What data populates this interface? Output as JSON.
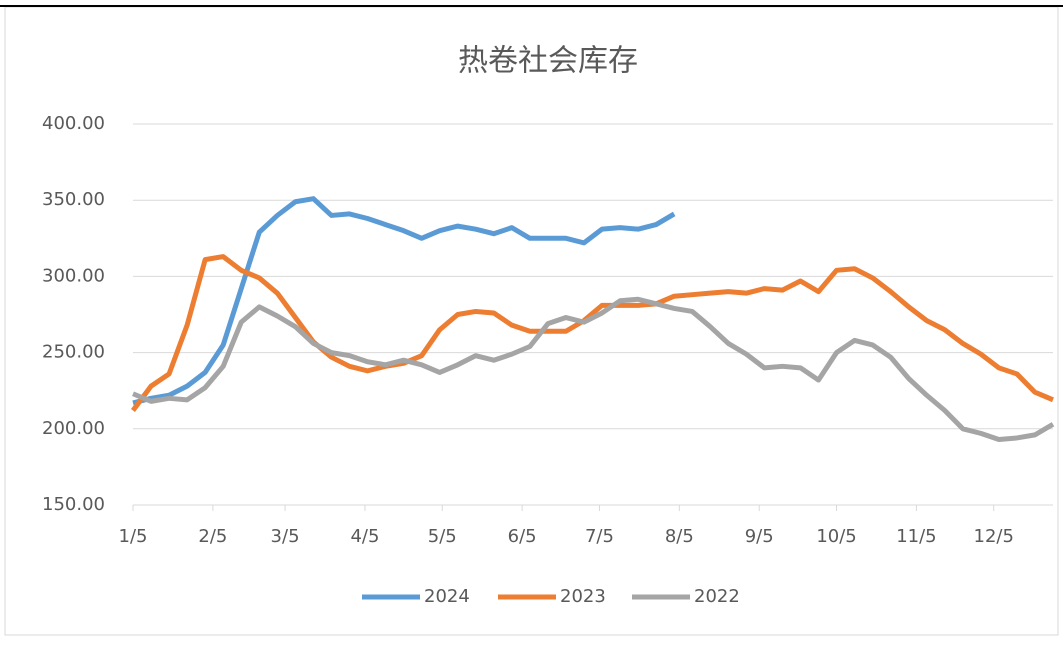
{
  "chart_data": {
    "type": "line",
    "title": "热卷社会库存",
    "x": [
      5,
      12,
      19,
      26,
      33,
      40,
      47,
      54,
      61,
      68,
      75,
      82,
      89,
      96,
      103,
      110,
      117,
      124,
      131,
      138,
      145,
      152,
      159,
      166,
      173,
      180,
      187,
      194,
      201,
      208,
      215,
      222,
      229,
      236,
      243,
      250,
      257,
      264,
      271,
      278,
      285,
      292,
      299,
      306,
      313,
      320,
      327,
      334,
      341,
      348,
      355,
      362
    ],
    "xlim": [
      5,
      362
    ],
    "xticks": [
      {
        "value": 5,
        "label": "1/5"
      },
      {
        "value": 36,
        "label": "2/5"
      },
      {
        "value": 64,
        "label": "3/5"
      },
      {
        "value": 95,
        "label": "4/5"
      },
      {
        "value": 125,
        "label": "5/5"
      },
      {
        "value": 156,
        "label": "6/5"
      },
      {
        "value": 186,
        "label": "7/5"
      },
      {
        "value": 217,
        "label": "8/5"
      },
      {
        "value": 248,
        "label": "9/5"
      },
      {
        "value": 278,
        "label": "10/5"
      },
      {
        "value": 309,
        "label": "11/5"
      },
      {
        "value": 339,
        "label": "12/5"
      }
    ],
    "ylim": [
      150,
      400
    ],
    "yticks": [
      {
        "value": 150,
        "label": "150.00"
      },
      {
        "value": 200,
        "label": "200.00"
      },
      {
        "value": 250,
        "label": "250.00"
      },
      {
        "value": 300,
        "label": "300.00"
      },
      {
        "value": 350,
        "label": "350.00"
      },
      {
        "value": 400,
        "label": "400.00"
      }
    ],
    "grid": true,
    "legend": "bottom",
    "series": [
      {
        "name": "2024",
        "color": "#5b9bd5",
        "values": [
          217,
          220,
          222,
          228,
          237,
          255,
          292,
          329,
          340,
          349,
          351,
          340,
          341,
          338,
          334,
          330,
          325,
          330,
          333,
          331,
          328,
          332,
          325,
          325,
          325,
          322,
          331,
          332,
          331,
          334,
          341,
          null,
          null,
          null,
          null,
          null,
          null,
          null,
          null,
          null,
          null,
          null,
          null,
          null,
          null,
          null,
          null,
          null,
          null,
          null,
          null,
          null
        ]
      },
      {
        "name": "2023",
        "color": "#ed7d31",
        "values": [
          212,
          228,
          236,
          268,
          311,
          313,
          304,
          299,
          289,
          273,
          257,
          247,
          241,
          238,
          241,
          243,
          248,
          265,
          275,
          277,
          276,
          268,
          264,
          264,
          264,
          271,
          281,
          281,
          281,
          282,
          287,
          288,
          289,
          290,
          289,
          292,
          291,
          297,
          290,
          304,
          305,
          299,
          290,
          280,
          271,
          265,
          256,
          249,
          240,
          236,
          224,
          219
        ]
      },
      {
        "name": "2022",
        "color": "#a5a5a5",
        "values": [
          223,
          218,
          220,
          219,
          227,
          241,
          270,
          280,
          274,
          267,
          256,
          250,
          248,
          244,
          242,
          245,
          242,
          237,
          242,
          248,
          245,
          249,
          254,
          269,
          273,
          270,
          276,
          284,
          285,
          282,
          279,
          277,
          267,
          256,
          249,
          240,
          241,
          240,
          232,
          250,
          258,
          255,
          247,
          233,
          222,
          212,
          200,
          197,
          193,
          194,
          196,
          203
        ]
      }
    ]
  }
}
